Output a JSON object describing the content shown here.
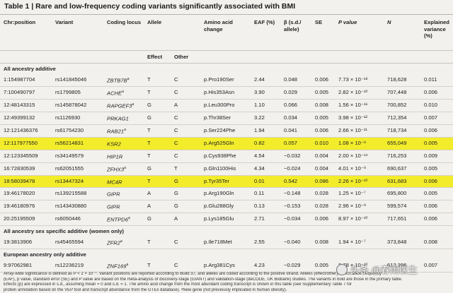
{
  "title": "Table 1 | Rare and low-frequency coding variants significantly associated with BMI",
  "headers": {
    "chr_pos": "Chr:position",
    "variant": "Variant",
    "coding_locus": "Coding locus",
    "allele": "Allele",
    "aa_change": "Amino acid change",
    "eaf": "EAF (%)",
    "beta": "β (s.d./ allele)",
    "se": "SE",
    "pval": "P value",
    "n": "N",
    "explained": "Explained variance (%)"
  },
  "allele_sub": {
    "effect": "Effect",
    "other": "Other"
  },
  "sections": [
    {
      "label": "All ancestry additive",
      "rows": [
        {
          "pos": "1:154987704",
          "var": "rs141845046",
          "gene": "ZBTB7B",
          "sup": "a",
          "eff": "T",
          "oth": "C",
          "aa": "p.Pro190Ser",
          "eaf": "2.44",
          "beta": "0.048",
          "se": "0.006",
          "p": "7.73 × 10⁻¹⁸",
          "n": "718,628",
          "ev": "0.011",
          "hl": false
        },
        {
          "pos": "7:100490797",
          "var": "rs1799805",
          "gene": "ACHE",
          "sup": "a",
          "eff": "T",
          "oth": "C",
          "aa": "p.His353Asn",
          "eaf": "3.90",
          "beta": "0.029",
          "se": "0.005",
          "p": "2.82 × 10⁻¹⁰",
          "n": "707,448",
          "ev": "0.006",
          "hl": false
        },
        {
          "pos": "12:48143315",
          "var": "rs145878042",
          "gene": "RAPGEF3",
          "sup": "a",
          "eff": "G",
          "oth": "A",
          "aa": "p.Leu300Pro",
          "eaf": "1.10",
          "beta": "0.066",
          "se": "0.008",
          "p": "1.56 × 10⁻¹⁶",
          "n": "700,852",
          "ev": "0.010",
          "hl": false
        },
        {
          "pos": "12:49399132",
          "var": "rs1126930",
          "gene": "PRKAG1",
          "sup": "",
          "eff": "G",
          "oth": "C",
          "aa": "p.Thr38Ser",
          "eaf": "3.22",
          "beta": "0.034",
          "se": "0.005",
          "p": "3.98 × 10⁻¹²",
          "n": "712,354",
          "ev": "0.007",
          "hl": false
        },
        {
          "pos": "12:121436376",
          "var": "rs61754230",
          "gene": "RAB21",
          "sup": "a",
          "eff": "T",
          "oth": "C",
          "aa": "p.Ser224Phe",
          "eaf": "1.94",
          "beta": "0.041",
          "se": "0.006",
          "p": "2.66 × 10⁻¹¹",
          "n": "718,734",
          "ev": "0.006",
          "hl": false
        },
        {
          "pos": "12:117977550",
          "var": "rs56214831",
          "gene": "KSR2",
          "sup": "",
          "eff": "T",
          "oth": "C",
          "aa": "p.Arg525Gln",
          "eaf": "0.82",
          "beta": "0.057",
          "se": "0.010",
          "p": "1.08 × 10⁻⁸",
          "n": "655,049",
          "ev": "0.005",
          "hl": true
        },
        {
          "pos": "12:123345509",
          "var": "rs34149579",
          "gene": "HIP1R",
          "sup": "",
          "eff": "T",
          "oth": "C",
          "aa": "p.Cys938Phe",
          "eaf": "4.54",
          "beta": "−0.032",
          "se": "0.004",
          "p": "2.00 × 10⁻¹⁴",
          "n": "716,253",
          "ev": "0.009",
          "hl": false
        },
        {
          "pos": "16:72830539",
          "var": "rs62051555",
          "gene": "ZFHX3",
          "sup": "a",
          "eff": "G",
          "oth": "T",
          "aa": "p.Gln1100His",
          "eaf": "4.34",
          "beta": "−0.024",
          "se": "0.004",
          "p": "4.01 × 10⁻⁸",
          "n": "690,637",
          "ev": "0.005",
          "hl": false
        },
        {
          "pos": "18:58039478",
          "var": "rs13447324",
          "gene": "MC4R",
          "sup": "",
          "eff": "T",
          "oth": "G",
          "aa": "p.Tyr35Ter",
          "eaf": "0.01",
          "beta": "0.542",
          "se": "0.086",
          "p": "2.26 × 10⁻¹⁰",
          "n": "631,683",
          "ev": "0.006",
          "hl": true
        },
        {
          "pos": "19:46178020",
          "var": "rs139215588",
          "gene": "GIPR",
          "sup": "",
          "eff": "A",
          "oth": "G",
          "aa": "p.Arg190Gln",
          "eaf": "0.11",
          "beta": "−0.148",
          "se": "0.028",
          "p": "1.25 × 10⁻⁷",
          "n": "695,800",
          "ev": "0.005",
          "hl": false
        },
        {
          "pos": "19:46180976",
          "var": "rs143430880",
          "gene": "GIPR",
          "sup": "",
          "eff": "A",
          "oth": "G",
          "aa": "p.Glu288Gly",
          "eaf": "0.13",
          "beta": "−0.153",
          "se": "0.028",
          "p": "2.96 × 10⁻⁸",
          "n": "599,574",
          "ev": "0.006",
          "hl": false
        },
        {
          "pos": "20:25195509",
          "var": "rs6050446",
          "gene": "ENTPD6",
          "sup": "a",
          "eff": "G",
          "oth": "A",
          "aa": "p.Lys185Glu",
          "eaf": "2.71",
          "beta": "−0.034",
          "se": "0.006",
          "p": "8.97 × 10⁻¹⁰",
          "n": "717,651",
          "ev": "0.006",
          "hl": false
        }
      ]
    },
    {
      "label": "All ancestry sex specific additive (women only)",
      "rows": [
        {
          "pos": "19:3813906",
          "var": "rs45465594",
          "gene": "ZFR2",
          "sup": "a",
          "eff": "T",
          "oth": "C",
          "aa": "p.Ile718Met",
          "eaf": "2.55",
          "beta": "−0.040",
          "se": "0.008",
          "p": "1.94 × 10⁻⁷",
          "n": "373,848",
          "ev": "0.008",
          "hl": false
        }
      ]
    },
    {
      "label": "European ancestry only additive",
      "rows": [
        {
          "pos": "9:97062981",
          "var": "rs12236219",
          "gene": "ZNF169",
          "sup": "a",
          "eff": "T",
          "oth": "C",
          "aa": "p.Arg381Cys",
          "eaf": "4.23",
          "beta": "−0.029",
          "se": "0.005",
          "p": "8.78 × 10⁻¹⁰",
          "n": "612,396",
          "ev": "0.007",
          "hl": false
        }
      ]
    }
  ],
  "footnote": [
    "Array-wide significance is defined as P < 2 × 10⁻⁷. Variant positions are reported according to Build 37, and alleles are coded according to the positive strand. Alleles (effect/other), effect allele frequency",
    "(EAF), β value, standard error (SE) and P value are based on the meta-analysis of discovery-stage (GIANT) and validation-stage (deCODE, UK Biobank) studies. The variants in bold are those in the primary table.",
    "Effects (β) are expressed in s.d., assuming mean = 0 and s.d. = 1. The amino acid change from the most abundant coding transcript is shown in this table (see Supplementary Table 7 for",
    "protein annotation based on the VEP tool and transcript abundance from the GTEx database). ᵃNew gene (not previously implicated in human obesity)."
  ],
  "watermark": "头条 @春雨医生"
}
